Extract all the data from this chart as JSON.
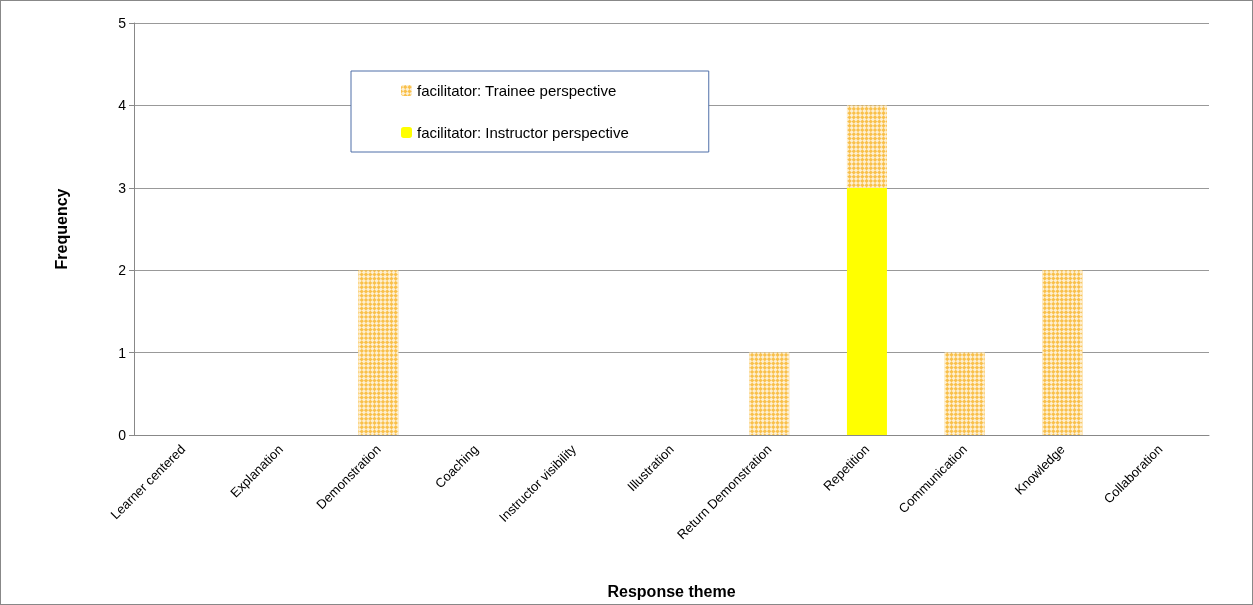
{
  "chart_data": {
    "type": "bar",
    "xlabel": "Response theme",
    "ylabel": "Frequency",
    "categories": [
      "Learner centered",
      "Explanation",
      "Demonstration",
      "Coaching",
      "Instructor visibility",
      "Illustration",
      "Return Demonstration",
      "Repetition",
      "Communication",
      "Knowledge",
      "Collaboration"
    ],
    "stacked": true,
    "series": [
      {
        "name": "facilitator: Instructor perspective",
        "color": "#ffff00",
        "values": [
          0,
          0,
          0,
          0,
          0,
          0,
          0,
          3,
          0,
          0,
          0
        ]
      },
      {
        "name": "facilitator: Trainee perspective",
        "color": "#f9c04a",
        "values": [
          0,
          0,
          2,
          0,
          0,
          0,
          1,
          1,
          1,
          2,
          0
        ]
      }
    ],
    "ylim": [
      0,
      5
    ],
    "yticks": [
      0,
      1,
      2,
      3,
      4,
      5
    ],
    "grid": "y",
    "legend": "top"
  }
}
